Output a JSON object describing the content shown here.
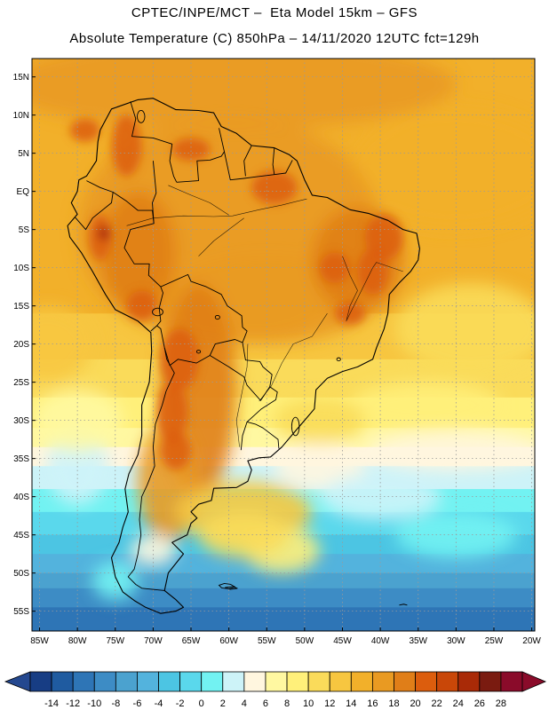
{
  "header": {
    "line1": "CPTEC/INPE/MCT –  Eta Model 15km – GFS",
    "line2": "Absolute Temperature (C) 850hPa – 14/11/2020 12UTC fct=129h"
  },
  "map": {
    "lon_min": -86,
    "lon_max": -19.6,
    "lat_min": -57.6,
    "lat_max": 17.4,
    "lat_ticks": [
      {
        "v": 15,
        "label": "15N"
      },
      {
        "v": 10,
        "label": "10N"
      },
      {
        "v": 5,
        "label": "5N"
      },
      {
        "v": 0,
        "label": "EQ"
      },
      {
        "v": -5,
        "label": "5S"
      },
      {
        "v": -10,
        "label": "10S"
      },
      {
        "v": -15,
        "label": "15S"
      },
      {
        "v": -20,
        "label": "20S"
      },
      {
        "v": -25,
        "label": "25S"
      },
      {
        "v": -30,
        "label": "30S"
      },
      {
        "v": -35,
        "label": "35S"
      },
      {
        "v": -40,
        "label": "40S"
      },
      {
        "v": -45,
        "label": "45S"
      },
      {
        "v": -50,
        "label": "50S"
      },
      {
        "v": -55,
        "label": "55S"
      }
    ],
    "lon_ticks": [
      {
        "v": -85,
        "label": "85W"
      },
      {
        "v": -80,
        "label": "80W"
      },
      {
        "v": -75,
        "label": "75W"
      },
      {
        "v": -70,
        "label": "70W"
      },
      {
        "v": -65,
        "label": "65W"
      },
      {
        "v": -60,
        "label": "60W"
      },
      {
        "v": -55,
        "label": "55W"
      },
      {
        "v": -50,
        "label": "50W"
      },
      {
        "v": -45,
        "label": "45W"
      },
      {
        "v": -40,
        "label": "40W"
      },
      {
        "v": -35,
        "label": "35W"
      },
      {
        "v": -30,
        "label": "30W"
      },
      {
        "v": -25,
        "label": "25W"
      },
      {
        "v": -20,
        "label": "20W"
      }
    ],
    "coast": [
      [
        -77,
        8
      ],
      [
        -75.5,
        10.8
      ],
      [
        -72,
        12
      ],
      [
        -70,
        12.2
      ],
      [
        -67,
        10.7
      ],
      [
        -64,
        10.6
      ],
      [
        -62,
        10.3
      ],
      [
        -61,
        8.5
      ],
      [
        -59,
        7.6
      ],
      [
        -57,
        6
      ],
      [
        -54,
        5.7
      ],
      [
        -52,
        4.8
      ],
      [
        -51,
        4
      ],
      [
        -50,
        1.5
      ],
      [
        -49,
        -0.5
      ],
      [
        -47,
        -0.8
      ],
      [
        -44,
        -2.4
      ],
      [
        -41.5,
        -2.9
      ],
      [
        -39,
        -3.8
      ],
      [
        -37,
        -5
      ],
      [
        -35.2,
        -5.5
      ],
      [
        -34.8,
        -7.5
      ],
      [
        -35,
        -9
      ],
      [
        -36,
        -10.5
      ],
      [
        -37.5,
        -12
      ],
      [
        -38.8,
        -13.5
      ],
      [
        -39,
        -16
      ],
      [
        -39.5,
        -18
      ],
      [
        -40.5,
        -20.5
      ],
      [
        -41,
        -22
      ],
      [
        -43,
        -23
      ],
      [
        -45,
        -23.6
      ],
      [
        -47,
        -24.5
      ],
      [
        -48.5,
        -26
      ],
      [
        -48.7,
        -28.5
      ],
      [
        -50,
        -30
      ],
      [
        -51.3,
        -31.5
      ],
      [
        -53,
        -33.5
      ],
      [
        -54.5,
        -34.8
      ],
      [
        -56,
        -34.9
      ],
      [
        -57.5,
        -35.3
      ],
      [
        -57,
        -36.5
      ],
      [
        -57.5,
        -38
      ],
      [
        -59,
        -38.8
      ],
      [
        -62,
        -38.9
      ],
      [
        -62.3,
        -40.5
      ],
      [
        -64,
        -41
      ],
      [
        -65,
        -42
      ],
      [
        -64.2,
        -42.8
      ],
      [
        -65,
        -43.5
      ],
      [
        -65.5,
        -45
      ],
      [
        -67.5,
        -46
      ],
      [
        -66,
        -47.5
      ],
      [
        -68,
        -50
      ],
      [
        -68.5,
        -52.3
      ],
      [
        -67,
        -53.5
      ],
      [
        -66,
        -54.5
      ],
      [
        -67,
        -55
      ],
      [
        -69,
        -55.3
      ],
      [
        -71,
        -54.5
      ],
      [
        -72.5,
        -53.6
      ],
      [
        -74,
        -52.5
      ],
      [
        -75,
        -50.5
      ],
      [
        -75.5,
        -48
      ],
      [
        -74.5,
        -46
      ],
      [
        -74,
        -44
      ],
      [
        -73.3,
        -42
      ],
      [
        -73.7,
        -39
      ],
      [
        -73.2,
        -37
      ],
      [
        -72,
        -34.5
      ],
      [
        -71.5,
        -32
      ],
      [
        -71.5,
        -28
      ],
      [
        -70.5,
        -25
      ],
      [
        -70.2,
        -21
      ],
      [
        -70.3,
        -18.5
      ],
      [
        -72,
        -17
      ],
      [
        -75,
        -15.5
      ],
      [
        -76.3,
        -13.5
      ],
      [
        -78,
        -10.5
      ],
      [
        -79.5,
        -8
      ],
      [
        -81,
        -6
      ],
      [
        -81.3,
        -4.5
      ],
      [
        -80,
        -3
      ],
      [
        -80.8,
        -1.5
      ],
      [
        -80,
        0
      ],
      [
        -79.8,
        1.5
      ],
      [
        -78.8,
        2
      ],
      [
        -77.5,
        4
      ],
      [
        -77.3,
        6.5
      ],
      [
        -77,
        8
      ]
    ],
    "borders": [
      [
        [
          -73,
          11.8
        ],
        [
          -72.3,
          9.5
        ],
        [
          -72.8,
          7.2
        ],
        [
          -70,
          7
        ],
        [
          -67.5,
          6.2
        ],
        [
          -67.8,
          4
        ],
        [
          -67.3,
          2
        ],
        [
          -66.9,
          1.2
        ]
      ],
      [
        [
          -70,
          4
        ],
        [
          -69.6,
          -0.2
        ],
        [
          -70.1,
          -1.5
        ],
        [
          -69.9,
          -4.2
        ]
      ],
      [
        [
          -66.9,
          1.2
        ],
        [
          -64,
          1.4
        ],
        [
          -64.2,
          4
        ],
        [
          -62.5,
          4.1
        ],
        [
          -61,
          4.6
        ],
        [
          -60.6,
          5.2
        ],
        [
          -61.3,
          8.3
        ]
      ],
      [
        [
          -60.6,
          5.2
        ],
        [
          -59.8,
          1.5
        ],
        [
          -58,
          1.7
        ],
        [
          -56.5,
          1.9
        ],
        [
          -54,
          2.2
        ],
        [
          -52.5,
          2.4
        ],
        [
          -51.6,
          4.1
        ]
      ],
      [
        [
          -57,
          6
        ],
        [
          -58,
          4
        ],
        [
          -57.8,
          2
        ]
      ],
      [
        [
          -54,
          5.7
        ],
        [
          -54.2,
          3.5
        ],
        [
          -54,
          2.2
        ]
      ],
      [
        [
          -78.8,
          1.4
        ],
        [
          -77,
          0.5
        ],
        [
          -75.3,
          -0.1
        ],
        [
          -75.5,
          -1.5
        ],
        [
          -78,
          -3.5
        ],
        [
          -78.9,
          -5
        ],
        [
          -80.3,
          -3.4
        ]
      ],
      [
        [
          -75.3,
          -0.1
        ],
        [
          -73.5,
          -1.3
        ],
        [
          -72,
          -2.5
        ],
        [
          -70.1,
          -2.5
        ],
        [
          -69.9,
          -4.2
        ],
        [
          -73,
          -5
        ],
        [
          -73.8,
          -7.4
        ],
        [
          -72.5,
          -9.5
        ],
        [
          -70.5,
          -9.5
        ],
        [
          -70.6,
          -11
        ],
        [
          -69,
          -12.5
        ],
        [
          -68.7,
          -13.3
        ],
        [
          -69.2,
          -15.3
        ],
        [
          -69,
          -17
        ],
        [
          -69.5,
          -17.6
        ],
        [
          -70.3,
          -18.3
        ]
      ],
      [
        [
          -69,
          -12.5
        ],
        [
          -65.4,
          -10.9
        ],
        [
          -65,
          -11.8
        ],
        [
          -63,
          -12.5
        ],
        [
          -61,
          -13.5
        ],
        [
          -60.2,
          -15
        ],
        [
          -58.3,
          -16.3
        ],
        [
          -58.2,
          -17.8
        ],
        [
          -57.6,
          -18.3
        ],
        [
          -58.2,
          -19.8
        ],
        [
          -59.2,
          -19.4
        ],
        [
          -61.8,
          -20
        ],
        [
          -62.5,
          -21.5
        ],
        [
          -64.3,
          -22.5
        ],
        [
          -66.7,
          -22
        ],
        [
          -67.8,
          -22.8
        ],
        [
          -68.5,
          -20.5
        ],
        [
          -69,
          -18
        ],
        [
          -69.5,
          -17.6
        ]
      ],
      [
        [
          -62.5,
          -21.5
        ],
        [
          -60,
          -23
        ],
        [
          -58,
          -24.3
        ],
        [
          -57.6,
          -25.4
        ],
        [
          -55.8,
          -27.4
        ],
        [
          -54.6,
          -25.6
        ],
        [
          -54.3,
          -24
        ],
        [
          -55.5,
          -23
        ],
        [
          -55.9,
          -22.3
        ],
        [
          -57.8,
          -22.1
        ],
        [
          -58.2,
          -19.8
        ]
      ],
      [
        [
          -68.5,
          -20.5
        ],
        [
          -68.2,
          -22
        ],
        [
          -67.2,
          -23.8
        ],
        [
          -68.3,
          -26.2
        ],
        [
          -68.8,
          -28
        ],
        [
          -69.7,
          -30.5
        ],
        [
          -70,
          -33.5
        ],
        [
          -69.8,
          -36
        ],
        [
          -70.8,
          -38.5
        ],
        [
          -71.5,
          -40
        ],
        [
          -71.8,
          -43
        ],
        [
          -71.6,
          -45
        ],
        [
          -72,
          -47.5
        ],
        [
          -72.5,
          -49.5
        ],
        [
          -73.3,
          -50.5
        ],
        [
          -72.3,
          -51.5
        ],
        [
          -71.5,
          -52
        ],
        [
          -69.5,
          -52.2
        ],
        [
          -68.5,
          -52.3
        ]
      ],
      [
        [
          -54.6,
          -25.6
        ],
        [
          -53.6,
          -26.3
        ],
        [
          -53.8,
          -27.3
        ],
        [
          -55.7,
          -28.5
        ],
        [
          -57.6,
          -30.2
        ],
        [
          -56.5,
          -30.5
        ],
        [
          -55.5,
          -31
        ],
        [
          -53.5,
          -32.5
        ],
        [
          -53.4,
          -33.7
        ]
      ],
      [
        [
          -57.6,
          -30.2
        ],
        [
          -58.2,
          -32
        ],
        [
          -58.4,
          -33.9
        ]
      ]
    ],
    "rivers": [
      [
        [
          -73.5,
          -4.5
        ],
        [
          -70,
          -3.5
        ],
        [
          -66,
          -3.2
        ],
        [
          -62,
          -3.3
        ],
        [
          -59.5,
          -3.2
        ],
        [
          -56,
          -2.4
        ],
        [
          -53,
          -1.8
        ],
        [
          -51,
          -1.3
        ],
        [
          -49.7,
          -1
        ]
      ],
      [
        [
          -68,
          0.8
        ],
        [
          -65,
          -0.5
        ],
        [
          -62.5,
          -1.5
        ],
        [
          -60,
          -3.1
        ]
      ],
      [
        [
          -64,
          -8.5
        ],
        [
          -62,
          -6.5
        ],
        [
          -60,
          -5
        ],
        [
          -58,
          -3.5
        ]
      ],
      [
        [
          -45,
          -8.5
        ],
        [
          -44,
          -11
        ],
        [
          -43,
          -13
        ],
        [
          -44,
          -15
        ],
        [
          -44.5,
          -17
        ],
        [
          -41,
          -10
        ],
        [
          -40.5,
          -9.3
        ],
        [
          -37,
          -10.5
        ]
      ],
      [
        [
          -57.5,
          -20
        ],
        [
          -57.6,
          -23
        ],
        [
          -58.4,
          -27
        ],
        [
          -59,
          -30
        ],
        [
          -58.6,
          -33.5
        ]
      ],
      [
        [
          -47,
          -16
        ],
        [
          -49,
          -19
        ],
        [
          -51.5,
          -20
        ],
        [
          -53,
          -22.5
        ],
        [
          -54.4,
          -25.5
        ],
        [
          -56,
          -27.5
        ]
      ]
    ],
    "lakes": [
      {
        "lon": -69.4,
        "lat": -15.8,
        "rx": 0.7,
        "ry": 0.5
      },
      {
        "lon": -71.6,
        "lat": 9.8,
        "rx": 0.5,
        "ry": 0.8
      },
      {
        "lon": -51.2,
        "lat": -30.8,
        "rx": 0.5,
        "ry": 1.2
      },
      {
        "lon": -61.5,
        "lat": -16.5,
        "rx": 0.3,
        "ry": 0.25
      },
      {
        "lon": -64,
        "lat": -21,
        "rx": 0.25,
        "ry": 0.2
      },
      {
        "lon": -45.5,
        "lat": -22,
        "rx": 0.25,
        "ry": 0.2
      }
    ]
  },
  "colorbar": {
    "ticks": [
      "-14",
      "-12",
      "-10",
      "-8",
      "-6",
      "-4",
      "-2",
      "0",
      "2",
      "4",
      "6",
      "8",
      "10",
      "12",
      "14",
      "16",
      "18",
      "20",
      "22",
      "24",
      "26",
      "28"
    ],
    "colors": [
      "#173d84",
      "#1f5ba0",
      "#2e75b6",
      "#3d8cc5",
      "#4ba2cf",
      "#53b3dd",
      "#4cc5e3",
      "#5ad8ec",
      "#72f2f2",
      "#cdf3f8",
      "#fff6df",
      "#fff8a1",
      "#fff07a",
      "#fadb5a",
      "#f7c640",
      "#f2b02a",
      "#e99a22",
      "#e07e18",
      "#dc5d0d",
      "#c94708",
      "#a92a07",
      "#7a1b10",
      "#8a0b2a"
    ],
    "low_color": "#24488f",
    "high_color": "#8a0b2a"
  }
}
